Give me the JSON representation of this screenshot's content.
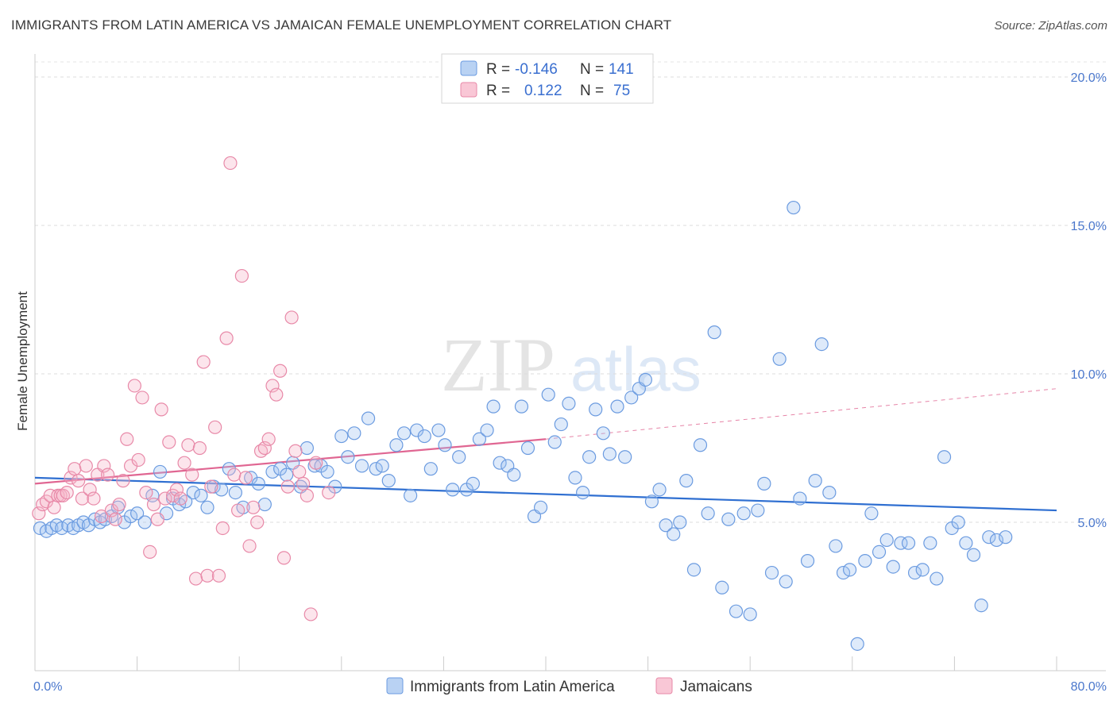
{
  "header": {
    "title": "IMMIGRANTS FROM LATIN AMERICA VS JAMAICAN FEMALE UNEMPLOYMENT CORRELATION CHART",
    "source": "Source: ZipAtlas.com"
  },
  "watermark": {
    "zip": "ZIP",
    "atlas": "atlas"
  },
  "legend_box": {
    "rows": [
      {
        "r_label": "R =",
        "r_value": "-0.146",
        "n_label": "N =",
        "n_value": "141",
        "color": "#6b9be0"
      },
      {
        "r_label": "R =",
        "r_value": "0.122",
        "n_label": "N =",
        "n_value": "75",
        "color": "#e889a8"
      }
    ]
  },
  "chart_data": {
    "type": "scatter",
    "title": "IMMIGRANTS FROM LATIN AMERICA VS JAMAICAN FEMALE UNEMPLOYMENT CORRELATION CHART",
    "xlabel": "",
    "ylabel": "Female Unemployment",
    "xlim": [
      0,
      80
    ],
    "ylim": [
      0,
      20
    ],
    "x_tick_labels": [
      "0.0%",
      "80.0%"
    ],
    "y_ticks": [
      5,
      10,
      15,
      20
    ],
    "y_tick_labels": [
      "5.0%",
      "10.0%",
      "15.0%",
      "20.0%"
    ],
    "grid": true,
    "legend_position": "bottom",
    "series": [
      {
        "name": "Immigrants from Latin America",
        "color": "#6b9be0",
        "trend": {
          "x": [
            0,
            80
          ],
          "y": [
            6.5,
            5.4
          ],
          "style": "solid"
        },
        "points": [
          [
            0.4,
            4.8
          ],
          [
            0.9,
            4.7
          ],
          [
            1.3,
            4.8
          ],
          [
            1.7,
            4.9
          ],
          [
            2.1,
            4.8
          ],
          [
            2.6,
            4.9
          ],
          [
            3.0,
            4.8
          ],
          [
            3.4,
            4.9
          ],
          [
            3.8,
            5.0
          ],
          [
            4.2,
            4.9
          ],
          [
            4.7,
            5.1
          ],
          [
            5.1,
            5.0
          ],
          [
            5.5,
            5.1
          ],
          [
            6.0,
            5.2
          ],
          [
            6.5,
            5.5
          ],
          [
            7.0,
            5.0
          ],
          [
            7.5,
            5.2
          ],
          [
            8.0,
            5.3
          ],
          [
            8.6,
            5.0
          ],
          [
            9.2,
            5.9
          ],
          [
            9.8,
            6.7
          ],
          [
            10.3,
            5.3
          ],
          [
            10.8,
            5.8
          ],
          [
            11.3,
            5.6
          ],
          [
            11.8,
            5.7
          ],
          [
            12.4,
            6.0
          ],
          [
            13.0,
            5.9
          ],
          [
            13.5,
            5.5
          ],
          [
            14.0,
            6.2
          ],
          [
            14.6,
            6.1
          ],
          [
            15.2,
            6.8
          ],
          [
            15.7,
            6.0
          ],
          [
            16.3,
            5.5
          ],
          [
            16.9,
            6.5
          ],
          [
            17.5,
            6.3
          ],
          [
            18.0,
            5.6
          ],
          [
            18.6,
            6.7
          ],
          [
            19.2,
            6.8
          ],
          [
            19.7,
            6.6
          ],
          [
            20.2,
            7.0
          ],
          [
            20.8,
            6.2
          ],
          [
            21.3,
            7.5
          ],
          [
            21.9,
            6.9
          ],
          [
            22.4,
            6.9
          ],
          [
            22.9,
            6.7
          ],
          [
            23.5,
            6.2
          ],
          [
            24.0,
            7.9
          ],
          [
            24.5,
            7.2
          ],
          [
            25.0,
            8.0
          ],
          [
            25.6,
            6.9
          ],
          [
            26.1,
            8.5
          ],
          [
            26.7,
            6.8
          ],
          [
            27.2,
            6.9
          ],
          [
            27.7,
            6.4
          ],
          [
            28.3,
            7.6
          ],
          [
            28.9,
            8.0
          ],
          [
            29.4,
            5.9
          ],
          [
            29.9,
            8.1
          ],
          [
            30.5,
            7.9
          ],
          [
            31.0,
            6.8
          ],
          [
            31.6,
            8.1
          ],
          [
            32.1,
            7.6
          ],
          [
            32.7,
            6.1
          ],
          [
            33.2,
            7.2
          ],
          [
            33.8,
            6.1
          ],
          [
            34.3,
            6.3
          ],
          [
            34.8,
            7.8
          ],
          [
            35.4,
            8.1
          ],
          [
            35.9,
            8.9
          ],
          [
            36.4,
            7.0
          ],
          [
            37.0,
            6.9
          ],
          [
            37.5,
            6.6
          ],
          [
            38.1,
            8.9
          ],
          [
            38.6,
            7.5
          ],
          [
            39.1,
            5.2
          ],
          [
            39.6,
            5.5
          ],
          [
            40.2,
            9.3
          ],
          [
            40.7,
            7.7
          ],
          [
            41.2,
            8.3
          ],
          [
            41.8,
            9.0
          ],
          [
            42.3,
            6.5
          ],
          [
            42.9,
            6.0
          ],
          [
            43.4,
            7.2
          ],
          [
            43.9,
            8.8
          ],
          [
            44.5,
            8.0
          ],
          [
            45.0,
            7.3
          ],
          [
            45.6,
            8.9
          ],
          [
            46.2,
            7.2
          ],
          [
            46.7,
            9.2
          ],
          [
            47.3,
            9.5
          ],
          [
            47.8,
            9.8
          ],
          [
            48.3,
            5.7
          ],
          [
            48.9,
            6.1
          ],
          [
            49.4,
            4.9
          ],
          [
            50.0,
            4.6
          ],
          [
            50.5,
            5.0
          ],
          [
            51.0,
            6.4
          ],
          [
            51.6,
            3.4
          ],
          [
            52.1,
            7.6
          ],
          [
            52.7,
            5.3
          ],
          [
            53.2,
            11.4
          ],
          [
            53.8,
            2.8
          ],
          [
            54.3,
            5.1
          ],
          [
            54.9,
            2.0
          ],
          [
            55.5,
            5.3
          ],
          [
            56.0,
            1.9
          ],
          [
            56.6,
            5.4
          ],
          [
            57.1,
            6.3
          ],
          [
            57.7,
            3.3
          ],
          [
            58.3,
            10.5
          ],
          [
            58.8,
            3.0
          ],
          [
            59.4,
            15.6
          ],
          [
            59.9,
            5.8
          ],
          [
            60.5,
            3.7
          ],
          [
            61.1,
            6.4
          ],
          [
            61.6,
            11.0
          ],
          [
            62.2,
            6.0
          ],
          [
            62.7,
            4.2
          ],
          [
            63.3,
            3.3
          ],
          [
            63.8,
            3.4
          ],
          [
            64.4,
            0.9
          ],
          [
            65.0,
            3.7
          ],
          [
            65.5,
            5.3
          ],
          [
            66.1,
            4.0
          ],
          [
            66.7,
            4.4
          ],
          [
            67.2,
            3.5
          ],
          [
            67.8,
            4.3
          ],
          [
            68.4,
            4.3
          ],
          [
            68.9,
            3.3
          ],
          [
            69.5,
            3.4
          ],
          [
            70.1,
            4.3
          ],
          [
            70.6,
            3.1
          ],
          [
            71.2,
            7.2
          ],
          [
            71.8,
            4.8
          ],
          [
            72.3,
            5.0
          ],
          [
            72.9,
            4.3
          ],
          [
            73.5,
            3.9
          ],
          [
            74.1,
            2.2
          ],
          [
            74.7,
            4.5
          ],
          [
            75.3,
            4.4
          ],
          [
            76.0,
            4.5
          ]
        ]
      },
      {
        "name": "Jamaicans",
        "color": "#e889a8",
        "trend": {
          "x": [
            0,
            40
          ],
          "y": [
            6.3,
            7.8
          ],
          "style": "solid",
          "dashed_extension_to": [
            80,
            9.5
          ]
        },
        "points": [
          [
            0.3,
            5.3
          ],
          [
            0.6,
            5.6
          ],
          [
            0.9,
            5.7
          ],
          [
            1.2,
            5.9
          ],
          [
            1.5,
            5.5
          ],
          [
            1.8,
            5.9
          ],
          [
            2.0,
            5.9
          ],
          [
            2.2,
            5.9
          ],
          [
            2.5,
            6.0
          ],
          [
            2.8,
            6.5
          ],
          [
            3.1,
            6.8
          ],
          [
            3.4,
            6.4
          ],
          [
            3.7,
            5.8
          ],
          [
            4.0,
            6.9
          ],
          [
            4.3,
            6.1
          ],
          [
            4.6,
            5.8
          ],
          [
            4.9,
            6.6
          ],
          [
            5.2,
            5.2
          ],
          [
            5.4,
            6.9
          ],
          [
            5.7,
            6.6
          ],
          [
            6.0,
            5.4
          ],
          [
            6.3,
            5.1
          ],
          [
            6.6,
            5.6
          ],
          [
            6.9,
            6.4
          ],
          [
            7.2,
            7.8
          ],
          [
            7.5,
            6.9
          ],
          [
            7.8,
            9.6
          ],
          [
            8.1,
            7.1
          ],
          [
            8.4,
            9.2
          ],
          [
            8.7,
            6.0
          ],
          [
            9.0,
            4.0
          ],
          [
            9.3,
            5.6
          ],
          [
            9.6,
            5.1
          ],
          [
            9.9,
            8.8
          ],
          [
            10.2,
            5.8
          ],
          [
            10.5,
            7.7
          ],
          [
            10.8,
            5.9
          ],
          [
            11.1,
            6.1
          ],
          [
            11.4,
            5.8
          ],
          [
            11.7,
            7.0
          ],
          [
            12.0,
            7.6
          ],
          [
            12.3,
            6.6
          ],
          [
            12.6,
            3.1
          ],
          [
            12.9,
            7.5
          ],
          [
            13.2,
            10.4
          ],
          [
            13.5,
            3.2
          ],
          [
            13.8,
            6.2
          ],
          [
            14.1,
            8.2
          ],
          [
            14.4,
            3.2
          ],
          [
            14.7,
            4.8
          ],
          [
            15.0,
            11.2
          ],
          [
            15.3,
            17.1
          ],
          [
            15.6,
            6.6
          ],
          [
            15.9,
            5.4
          ],
          [
            16.2,
            13.3
          ],
          [
            16.5,
            6.5
          ],
          [
            16.8,
            4.2
          ],
          [
            17.1,
            5.5
          ],
          [
            17.4,
            5.0
          ],
          [
            17.7,
            7.4
          ],
          [
            18.0,
            7.5
          ],
          [
            18.3,
            7.8
          ],
          [
            18.6,
            9.6
          ],
          [
            18.9,
            9.3
          ],
          [
            19.2,
            10.1
          ],
          [
            19.5,
            3.8
          ],
          [
            19.8,
            6.2
          ],
          [
            20.1,
            11.9
          ],
          [
            20.4,
            7.4
          ],
          [
            20.7,
            6.7
          ],
          [
            21.0,
            6.3
          ],
          [
            21.3,
            5.9
          ],
          [
            21.6,
            1.9
          ],
          [
            22.0,
            7.0
          ],
          [
            23.0,
            6.0
          ]
        ]
      }
    ]
  }
}
